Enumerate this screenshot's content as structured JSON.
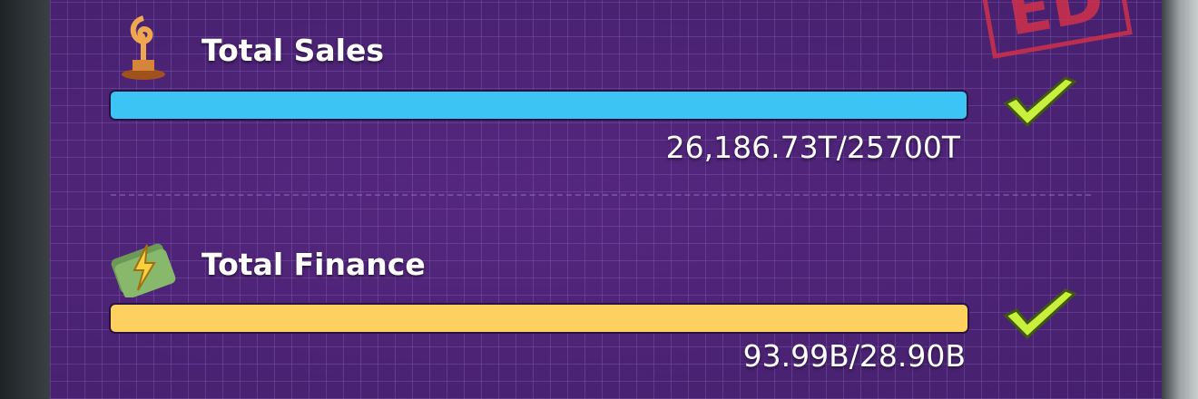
{
  "stamp": "ED",
  "goals": [
    {
      "label": "Total Sales",
      "progress": "26,186.73T/25700T"
    },
    {
      "label": "Total Finance",
      "progress": "93.99B/28.90B"
    }
  ]
}
